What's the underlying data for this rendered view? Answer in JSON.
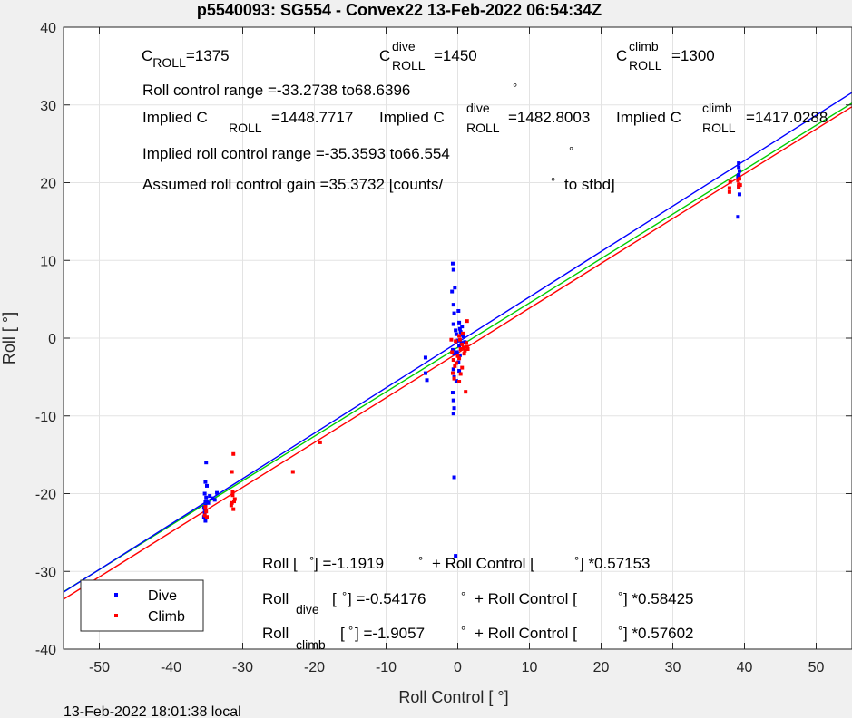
{
  "chart_data": {
    "type": "scatter",
    "title": "p5540093: SG554 - Convex22 13-Feb-2022 06:54:34Z",
    "xlabel": "Roll Control [   °]",
    "ylabel": "Roll [  °]",
    "xlim": [
      -55,
      55
    ],
    "ylim": [
      -40,
      40
    ],
    "xticks": [
      -50,
      -40,
      -30,
      -20,
      -10,
      0,
      10,
      20,
      30,
      40,
      50
    ],
    "yticks": [
      -40,
      -30,
      -20,
      -10,
      0,
      10,
      20,
      30,
      40
    ],
    "grid": true,
    "legend_position": "bottom-left",
    "series": [
      {
        "name": "Dive",
        "color": "#0000ff",
        "points": [
          [
            -35.2,
            -21
          ],
          [
            -35.3,
            -22
          ],
          [
            -35.1,
            -20.5
          ],
          [
            -35.4,
            -23
          ],
          [
            -35.2,
            -21.5
          ],
          [
            -35.3,
            -22.5
          ],
          [
            -35.0,
            -19
          ],
          [
            -35.2,
            -18.5
          ],
          [
            -35.1,
            -16
          ],
          [
            -35.3,
            -20
          ],
          [
            -35.2,
            -23.5
          ],
          [
            -35.4,
            -21.8
          ],
          [
            -34.6,
            -20.3
          ],
          [
            -34.2,
            -20.6
          ],
          [
            -33.6,
            -19.9
          ],
          [
            -33.9,
            -20.8
          ],
          [
            -34.8,
            -21.2
          ],
          [
            -4.5,
            -2.5
          ],
          [
            -4.5,
            -4.5
          ],
          [
            -4.3,
            -5.4
          ],
          [
            -0.7,
            9.6
          ],
          [
            -0.6,
            8.8
          ],
          [
            -0.8,
            6.0
          ],
          [
            -0.4,
            6.5
          ],
          [
            -0.6,
            4.3
          ],
          [
            -0.5,
            3.2
          ],
          [
            -0.6,
            1.8
          ],
          [
            -0.3,
            1.0
          ],
          [
            -0.2,
            0.5
          ],
          [
            -0.7,
            -1.5
          ],
          [
            -0.5,
            -2.0
          ],
          [
            -0.6,
            -4.0
          ],
          [
            -0.5,
            -5.0
          ],
          [
            -0.7,
            -7.0
          ],
          [
            -0.6,
            -8.0
          ],
          [
            -0.5,
            -9.0
          ],
          [
            -0.6,
            -9.7
          ],
          [
            -0.5,
            -17.9
          ],
          [
            -0.3,
            -28
          ],
          [
            0.1,
            3.5
          ],
          [
            0.2,
            2.0
          ],
          [
            0.3,
            1.2
          ],
          [
            0.4,
            0.8
          ],
          [
            0.5,
            0.4
          ],
          [
            0.0,
            -0.3
          ],
          [
            0.2,
            -1.0
          ],
          [
            -0.1,
            -1.8
          ],
          [
            0.3,
            -2.2
          ],
          [
            0.1,
            -3.1
          ],
          [
            0.5,
            -0.6
          ],
          [
            0.8,
            0.2
          ],
          [
            1.0,
            -0.5
          ],
          [
            0.6,
            1.5
          ],
          [
            -0.2,
            -5.5
          ],
          [
            0.2,
            -4.2
          ],
          [
            39.2,
            22.5
          ],
          [
            39.2,
            22.0
          ],
          [
            39.3,
            21.5
          ],
          [
            39.1,
            20.8
          ],
          [
            39.2,
            19.5
          ],
          [
            39.3,
            18.5
          ],
          [
            39.1,
            15.6
          ],
          [
            39.2,
            21.0
          ]
        ]
      },
      {
        "name": "Climb",
        "color": "#ff0000",
        "points": [
          [
            -35.1,
            -22.3
          ],
          [
            -35.3,
            -22.8
          ],
          [
            -35.2,
            -21.7
          ],
          [
            -35.0,
            -23.0
          ],
          [
            -31.3,
            -14.9
          ],
          [
            -31.5,
            -17.2
          ],
          [
            -31.4,
            -20.2
          ],
          [
            -31.2,
            -21.0
          ],
          [
            -31.6,
            -21.5
          ],
          [
            -31.3,
            -22.0
          ],
          [
            -31.1,
            -20.7
          ],
          [
            -31.4,
            -19.8
          ],
          [
            -31.5,
            -21.2
          ],
          [
            -23.0,
            -17.2
          ],
          [
            -19.2,
            -13.4
          ],
          [
            -0.8,
            -1.8
          ],
          [
            -0.6,
            -2.8
          ],
          [
            -0.4,
            -3.6
          ],
          [
            -0.7,
            -4.5
          ],
          [
            -0.5,
            -5.2
          ],
          [
            -0.2,
            -3.2
          ],
          [
            0.0,
            -2.3
          ],
          [
            0.2,
            -2.6
          ],
          [
            0.4,
            -1.4
          ],
          [
            0.6,
            -0.8
          ],
          [
            0.8,
            -1.2
          ],
          [
            1.0,
            -1.6
          ],
          [
            1.2,
            -0.6
          ],
          [
            1.3,
            -1.1
          ],
          [
            0.9,
            -2.0
          ],
          [
            0.6,
            -3.8
          ],
          [
            0.4,
            -4.6
          ],
          [
            0.2,
            -5.6
          ],
          [
            1.1,
            -6.9
          ],
          [
            1.3,
            2.2
          ],
          [
            0.2,
            0.3
          ],
          [
            -0.3,
            -0.4
          ],
          [
            -0.9,
            -0.2
          ],
          [
            0.7,
            0.6
          ],
          [
            0.3,
            -0.2
          ],
          [
            1.4,
            -1.4
          ],
          [
            37.9,
            19.3
          ],
          [
            37.9,
            18.8
          ],
          [
            38.0,
            20.1
          ],
          [
            39.2,
            19.8
          ],
          [
            39.1,
            20.3
          ],
          [
            39.4,
            19.7
          ],
          [
            39.3,
            20.5
          ],
          [
            39.2,
            19.4
          ]
        ]
      }
    ],
    "fit_lines": [
      {
        "name": "Roll",
        "color": "#00cc00",
        "intercept": -1.1919,
        "slope": 0.57153
      },
      {
        "name": "Roll dive",
        "color": "#0000ff",
        "intercept": -0.54176,
        "slope": 0.58425
      },
      {
        "name": "Roll climb",
        "color": "#ff0000",
        "intercept": -1.9057,
        "slope": 0.57602
      }
    ],
    "annotations": {
      "c_roll": {
        "main": "C",
        "sub": "ROLL",
        "value": "=1375"
      },
      "c_roll_dive": {
        "main": "C",
        "sup": "dive",
        "sub": "ROLL",
        "value": "=1450"
      },
      "c_roll_climb": {
        "main": "C",
        "sup": "climb",
        "sub": "ROLL",
        "value": "=1300"
      },
      "roll_control_range": "Roll control range =-33.2738 to68.6396",
      "implied_c": {
        "prefix": "Implied C",
        "sub": "ROLL",
        "value": "=1448.7717"
      },
      "implied_c_dive": {
        "prefix": "Implied C",
        "sup": "dive",
        "sub": "ROLL",
        "value": "=1482.8003"
      },
      "implied_c_climb": {
        "prefix": "Implied C",
        "sup": "climb",
        "sub": "ROLL",
        "value": "=1417.0288"
      },
      "implied_range": "Implied roll control range =-35.3593 to66.554",
      "gain_prefix": "Assumed roll control gain =35.3732 [counts/",
      "gain_suffix": "to stbd]",
      "degree": "°",
      "eq1": {
        "lhs": "Roll [",
        "mid": "] =-1.1919",
        "rc": "+ Roll Control [",
        "end": "] *0.57153"
      },
      "eq2": {
        "lhs": "Roll",
        "sub": "dive",
        "mid": "] =-0.54176",
        "rc": "+ Roll Control [",
        "end": "] *0.58425"
      },
      "eq3": {
        "lhs": "Roll",
        "sub": "climb",
        "mid": "] =-1.9057",
        "rc": "+ Roll Control [",
        "end": "] *0.57602"
      },
      "bracket_open": "["
    }
  },
  "footer": {
    "timestamp": "13-Feb-2022 18:01:38 local"
  }
}
